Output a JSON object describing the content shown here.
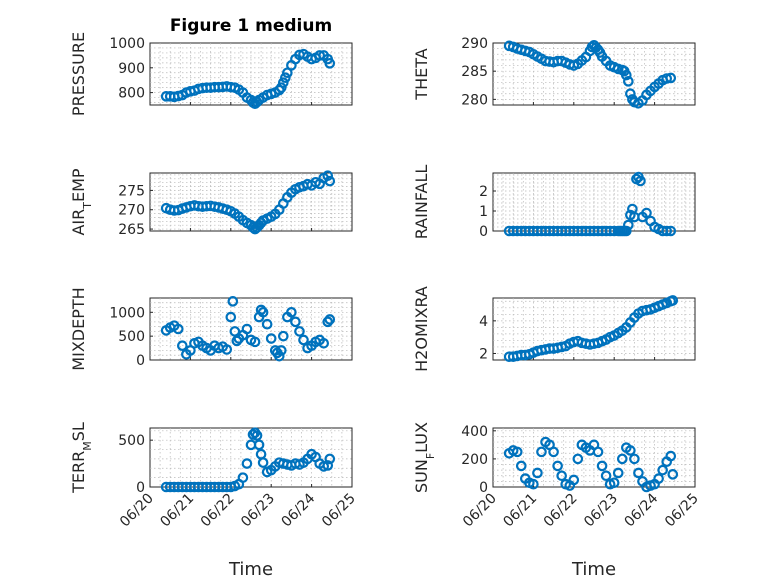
{
  "figure": {
    "title": "Figure 1 medium",
    "xlabel": "Time"
  },
  "chart_data": [
    {
      "type": "scatter",
      "ylabel": "PRESSURE",
      "ylim": [
        750,
        1000
      ],
      "yticks": [
        800,
        900,
        1000
      ],
      "xlim": [
        0,
        5
      ],
      "grid": "minor-dotted",
      "color": "#0072BD",
      "x": [
        0.4,
        0.5,
        0.6,
        0.7,
        0.8,
        0.9,
        1.0,
        1.1,
        1.2,
        1.3,
        1.4,
        1.5,
        1.6,
        1.7,
        1.8,
        1.9,
        2.0,
        2.1,
        2.2,
        2.3,
        2.4,
        2.5,
        2.55,
        2.6,
        2.65,
        2.7,
        2.8,
        2.9,
        3.0,
        3.1,
        3.2,
        3.25,
        3.3,
        3.35,
        3.4,
        3.5,
        3.6,
        3.7,
        3.8,
        3.9,
        4.0,
        4.1,
        4.2,
        4.3,
        4.4,
        4.45
      ],
      "y": [
        785,
        785,
        783,
        786,
        790,
        800,
        805,
        808,
        815,
        818,
        820,
        820,
        822,
        822,
        823,
        825,
        822,
        820,
        812,
        800,
        780,
        770,
        760,
        755,
        762,
        770,
        780,
        790,
        795,
        800,
        810,
        820,
        840,
        860,
        880,
        910,
        935,
        952,
        955,
        945,
        935,
        940,
        950,
        950,
        935,
        918
      ]
    },
    {
      "type": "scatter",
      "ylabel": "THETA",
      "ylim": [
        279,
        290
      ],
      "yticks": [
        280,
        285,
        290
      ],
      "xlim": [
        0,
        5
      ],
      "grid": "minor-dotted",
      "color": "#0072BD",
      "x": [
        0.4,
        0.5,
        0.6,
        0.7,
        0.8,
        0.9,
        1.0,
        1.1,
        1.2,
        1.3,
        1.4,
        1.5,
        1.6,
        1.7,
        1.8,
        1.9,
        2.0,
        2.1,
        2.2,
        2.3,
        2.4,
        2.45,
        2.5,
        2.55,
        2.6,
        2.65,
        2.7,
        2.8,
        2.9,
        3.0,
        3.1,
        3.2,
        3.25,
        3.3,
        3.35,
        3.4,
        3.45,
        3.5,
        3.6,
        3.7,
        3.8,
        3.9,
        4.0,
        4.1,
        4.2,
        4.3,
        4.4
      ],
      "y": [
        289.5,
        289.3,
        289.0,
        288.8,
        288.6,
        288.4,
        288.0,
        287.6,
        287.2,
        286.8,
        286.7,
        286.6,
        286.8,
        286.8,
        286.5,
        286.2,
        286.0,
        286.3,
        286.9,
        287.5,
        288.6,
        289.3,
        289.6,
        289.2,
        288.8,
        288.3,
        287.6,
        286.8,
        286.0,
        285.7,
        285.4,
        285.2,
        285.0,
        284.3,
        283.2,
        281.0,
        280.0,
        279.5,
        279.3,
        279.8,
        280.8,
        281.5,
        282.2,
        282.8,
        283.4,
        283.7,
        283.8
      ]
    },
    {
      "type": "scatter",
      "ylabel": "AIR_TEMP",
      "ylabel_main": "AIR",
      "ylabel_sub": "T",
      "ylabel_rest": "EMP",
      "ylim": [
        264.5,
        279.5
      ],
      "yticks": [
        265,
        270,
        275
      ],
      "xlim": [
        0,
        5
      ],
      "grid": "minor-dotted",
      "color": "#0072BD",
      "x": [
        0.4,
        0.5,
        0.6,
        0.7,
        0.8,
        0.9,
        1.0,
        1.1,
        1.2,
        1.3,
        1.4,
        1.5,
        1.6,
        1.7,
        1.8,
        1.9,
        2.0,
        2.1,
        2.2,
        2.3,
        2.4,
        2.5,
        2.55,
        2.6,
        2.65,
        2.7,
        2.75,
        2.8,
        2.9,
        3.0,
        3.1,
        3.2,
        3.3,
        3.4,
        3.5,
        3.6,
        3.7,
        3.8,
        3.9,
        4.0,
        4.1,
        4.2,
        4.3,
        4.4,
        4.45
      ],
      "y": [
        270.4,
        270.0,
        269.8,
        269.9,
        270.3,
        270.6,
        270.9,
        271.1,
        270.9,
        270.8,
        270.9,
        271.0,
        270.8,
        270.6,
        270.3,
        270.0,
        269.6,
        269.0,
        268.2,
        267.3,
        266.6,
        266.0,
        265.4,
        265.0,
        265.4,
        266.0,
        266.6,
        267.2,
        267.7,
        268.2,
        268.9,
        270.0,
        271.6,
        273.2,
        274.4,
        275.3,
        275.8,
        276.1,
        276.6,
        276.3,
        277.1,
        276.7,
        278.2,
        278.8,
        277.4
      ]
    },
    {
      "type": "scatter",
      "ylabel": "RAINFALL",
      "ylim": [
        0,
        2.9
      ],
      "yticks": [
        0,
        1,
        2
      ],
      "xlim": [
        0,
        5
      ],
      "grid": "minor-dotted",
      "color": "#0072BD",
      "x": [
        0.4,
        0.5,
        0.6,
        0.7,
        0.8,
        0.9,
        1.0,
        1.1,
        1.2,
        1.3,
        1.4,
        1.5,
        1.6,
        1.7,
        1.8,
        1.9,
        2.0,
        2.1,
        2.2,
        2.3,
        2.4,
        2.5,
        2.6,
        2.7,
        2.8,
        2.9,
        3.0,
        3.1,
        3.15,
        3.2,
        3.25,
        3.3,
        3.35,
        3.4,
        3.45,
        3.5,
        3.55,
        3.6,
        3.65,
        3.7,
        3.8,
        3.9,
        4.0,
        4.1,
        4.2,
        4.3,
        4.4
      ],
      "y": [
        0,
        0,
        0,
        0,
        0,
        0,
        0,
        0,
        0,
        0,
        0,
        0,
        0,
        0,
        0,
        0,
        0,
        0,
        0,
        0,
        0,
        0,
        0,
        0,
        0,
        0,
        0,
        0,
        0,
        0,
        0,
        0,
        0.3,
        0.8,
        1.1,
        0.7,
        2.6,
        2.7,
        2.5,
        0.7,
        0.9,
        0.5,
        0.2,
        0.1,
        0,
        0,
        0
      ]
    },
    {
      "type": "scatter",
      "ylabel": "MIXDEPTH",
      "ylim": [
        0,
        1300
      ],
      "yticks": [
        0,
        500,
        1000
      ],
      "xlim": [
        0,
        5
      ],
      "grid": "minor-dotted",
      "color": "#0072BD",
      "x": [
        0.4,
        0.5,
        0.6,
        0.7,
        0.8,
        0.9,
        1.0,
        1.1,
        1.2,
        1.3,
        1.4,
        1.5,
        1.6,
        1.7,
        1.8,
        1.9,
        2.0,
        2.05,
        2.1,
        2.15,
        2.2,
        2.3,
        2.4,
        2.5,
        2.6,
        2.7,
        2.75,
        2.8,
        2.9,
        3.0,
        3.1,
        3.15,
        3.2,
        3.25,
        3.3,
        3.4,
        3.5,
        3.6,
        3.7,
        3.8,
        3.9,
        4.0,
        4.1,
        4.2,
        4.3,
        4.4,
        4.45
      ],
      "y": [
        620,
        680,
        720,
        650,
        300,
        120,
        200,
        350,
        380,
        300,
        250,
        200,
        300,
        250,
        280,
        220,
        900,
        1230,
        600,
        400,
        450,
        520,
        650,
        420,
        380,
        900,
        1050,
        1000,
        750,
        450,
        200,
        150,
        80,
        200,
        500,
        900,
        1000,
        800,
        600,
        420,
        250,
        300,
        380,
        420,
        350,
        800,
        850
      ]
    },
    {
      "type": "scatter",
      "ylabel": "H2OMIXRA",
      "ylim": [
        1.6,
        5.4
      ],
      "yticks": [
        2,
        4
      ],
      "xlim": [
        0,
        5
      ],
      "grid": "minor-dotted",
      "color": "#0072BD",
      "x": [
        0.4,
        0.5,
        0.6,
        0.7,
        0.8,
        0.9,
        1.0,
        1.1,
        1.2,
        1.3,
        1.4,
        1.5,
        1.6,
        1.7,
        1.8,
        1.9,
        2.0,
        2.1,
        2.2,
        2.3,
        2.4,
        2.5,
        2.6,
        2.7,
        2.8,
        2.9,
        3.0,
        3.1,
        3.2,
        3.3,
        3.4,
        3.5,
        3.6,
        3.7,
        3.8,
        3.9,
        4.0,
        4.1,
        4.2,
        4.3,
        4.4,
        4.45
      ],
      "y": [
        1.8,
        1.8,
        1.85,
        1.9,
        1.9,
        1.95,
        2.05,
        2.15,
        2.2,
        2.25,
        2.3,
        2.3,
        2.35,
        2.4,
        2.45,
        2.6,
        2.7,
        2.75,
        2.65,
        2.6,
        2.55,
        2.6,
        2.65,
        2.75,
        2.85,
        3.0,
        3.1,
        3.25,
        3.4,
        3.6,
        3.9,
        4.2,
        4.45,
        4.6,
        4.65,
        4.7,
        4.8,
        4.9,
        5.0,
        5.1,
        5.2,
        5.25
      ]
    },
    {
      "type": "scatter",
      "ylabel": "TERR_MSL",
      "ylabel_main": "TERR",
      "ylabel_sub": "M",
      "ylabel_rest": "SL",
      "ylim": [
        0,
        630
      ],
      "yticks": [
        0,
        500
      ],
      "xlim": [
        0,
        5
      ],
      "grid": "minor-dotted",
      "color": "#0072BD",
      "x": [
        0.4,
        0.5,
        0.6,
        0.7,
        0.8,
        0.9,
        1.0,
        1.1,
        1.2,
        1.3,
        1.4,
        1.5,
        1.6,
        1.7,
        1.8,
        1.9,
        2.0,
        2.1,
        2.2,
        2.3,
        2.4,
        2.5,
        2.55,
        2.6,
        2.65,
        2.7,
        2.75,
        2.8,
        2.9,
        3.0,
        3.1,
        3.2,
        3.3,
        3.4,
        3.5,
        3.6,
        3.7,
        3.8,
        3.9,
        4.0,
        4.1,
        4.2,
        4.3,
        4.4,
        4.45
      ],
      "y": [
        0,
        0,
        0,
        0,
        0,
        0,
        0,
        0,
        0,
        0,
        0,
        0,
        0,
        0,
        0,
        0,
        0,
        10,
        30,
        100,
        250,
        450,
        560,
        580,
        550,
        450,
        350,
        260,
        160,
        180,
        220,
        260,
        250,
        240,
        230,
        250,
        240,
        260,
        300,
        350,
        320,
        250,
        220,
        230,
        300
      ]
    },
    {
      "type": "scatter",
      "ylabel": "SUN_FLUX",
      "ylabel_main": "SUN",
      "ylabel_sub": "F",
      "ylabel_rest": "LUX",
      "ylim": [
        0,
        420
      ],
      "yticks": [
        0,
        200,
        400
      ],
      "xlim": [
        0,
        5
      ],
      "grid": "minor-dotted",
      "color": "#0072BD",
      "x": [
        0.4,
        0.5,
        0.6,
        0.7,
        0.8,
        0.9,
        1.0,
        1.1,
        1.2,
        1.3,
        1.4,
        1.5,
        1.6,
        1.7,
        1.8,
        1.9,
        2.0,
        2.1,
        2.2,
        2.3,
        2.4,
        2.5,
        2.6,
        2.7,
        2.8,
        2.9,
        3.0,
        3.1,
        3.2,
        3.3,
        3.4,
        3.5,
        3.6,
        3.7,
        3.8,
        3.9,
        4.0,
        4.1,
        4.2,
        4.3,
        4.4,
        4.45
      ],
      "y": [
        240,
        260,
        250,
        150,
        60,
        30,
        20,
        100,
        250,
        320,
        300,
        250,
        150,
        80,
        20,
        10,
        50,
        200,
        300,
        280,
        260,
        300,
        250,
        150,
        80,
        20,
        30,
        100,
        200,
        280,
        260,
        200,
        100,
        40,
        0,
        10,
        20,
        60,
        120,
        180,
        220,
        90
      ]
    }
  ],
  "x_axis": {
    "ticks": [
      0,
      1,
      2,
      3,
      4,
      5
    ],
    "tick_labels": [
      "06/20",
      "06/21",
      "06/22",
      "06/23",
      "06/24",
      "06/25"
    ]
  }
}
